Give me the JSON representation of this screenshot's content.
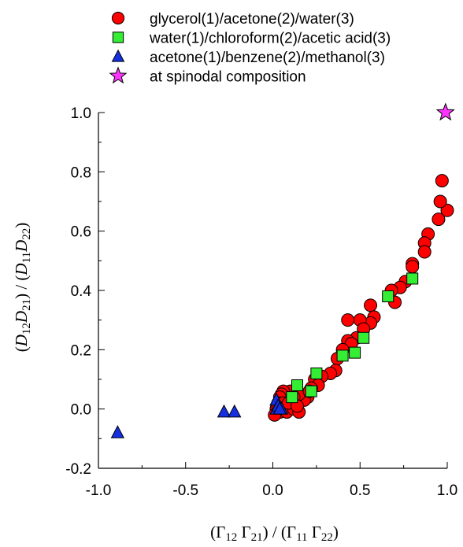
{
  "chart_data": {
    "type": "scatter",
    "title": "",
    "xlabel": {
      "parts": [
        {
          "t": "(Γ",
          "s": "n"
        },
        {
          "t": "12",
          "s": "sub"
        },
        {
          "t": " Γ",
          "s": "n"
        },
        {
          "t": "21",
          "s": "sub"
        },
        {
          "t": ") / (Γ",
          "s": "n"
        },
        {
          "t": "11",
          "s": "sub"
        },
        {
          "t": " Γ",
          "s": "n"
        },
        {
          "t": "22",
          "s": "sub"
        },
        {
          "t": ")",
          "s": "n"
        }
      ]
    },
    "ylabel": {
      "parts": [
        {
          "t": "(",
          "s": "n"
        },
        {
          "t": "D",
          "s": "i"
        },
        {
          "t": "12",
          "s": "sub"
        },
        {
          "t": "D",
          "s": "i"
        },
        {
          "t": "21",
          "s": "sub"
        },
        {
          "t": ") / (",
          "s": "n"
        },
        {
          "t": "D",
          "s": "i"
        },
        {
          "t": "11",
          "s": "sub"
        },
        {
          "t": "D",
          "s": "i"
        },
        {
          "t": "22",
          "s": "sub"
        },
        {
          "t": ")",
          "s": "n"
        }
      ]
    },
    "xlim": [
      -1.0,
      1.0
    ],
    "ylim": [
      -0.2,
      1.0
    ],
    "xticks": [
      "-1.0",
      "-0.5",
      "0.0",
      "0.5",
      "1.0"
    ],
    "yticks": [
      "-0.2",
      "0.0",
      "0.2",
      "0.4",
      "0.6",
      "0.8",
      "1.0"
    ],
    "grid": false,
    "legend_position": "top",
    "series": [
      {
        "name": "glycerol(1)/acetone(2)/water(3)",
        "marker": "circle",
        "color": "#ff0000",
        "points": [
          [
            0.97,
            0.77
          ],
          [
            1.0,
            0.67
          ],
          [
            0.96,
            0.7
          ],
          [
            0.95,
            0.64
          ],
          [
            0.89,
            0.59
          ],
          [
            0.87,
            0.56
          ],
          [
            0.87,
            0.53
          ],
          [
            0.8,
            0.49
          ],
          [
            0.8,
            0.48
          ],
          [
            0.76,
            0.43
          ],
          [
            0.73,
            0.41
          ],
          [
            0.68,
            0.4
          ],
          [
            0.7,
            0.36
          ],
          [
            0.56,
            0.35
          ],
          [
            0.58,
            0.31
          ],
          [
            0.56,
            0.29
          ],
          [
            0.5,
            0.3
          ],
          [
            0.52,
            0.27
          ],
          [
            0.48,
            0.24
          ],
          [
            0.43,
            0.3
          ],
          [
            0.43,
            0.23
          ],
          [
            0.45,
            0.22
          ],
          [
            0.4,
            0.2
          ],
          [
            0.37,
            0.17
          ],
          [
            0.36,
            0.13
          ],
          [
            0.33,
            0.12
          ],
          [
            0.28,
            0.11
          ],
          [
            0.24,
            0.1
          ],
          [
            0.26,
            0.08
          ],
          [
            0.22,
            0.07
          ],
          [
            0.2,
            0.04
          ],
          [
            0.18,
            0.03
          ],
          [
            0.15,
            0.05
          ],
          [
            0.12,
            0.04
          ],
          [
            0.1,
            0.06
          ],
          [
            0.08,
            0.02
          ],
          [
            0.06,
            0.06
          ],
          [
            0.05,
            0.05
          ],
          [
            0.04,
            0.04
          ],
          [
            0.03,
            0.02
          ],
          [
            0.02,
            0.0
          ],
          [
            0.04,
            -0.01
          ],
          [
            0.06,
            0.0
          ],
          [
            0.08,
            -0.01
          ],
          [
            0.12,
            0.0
          ],
          [
            0.15,
            -0.01
          ],
          [
            0.01,
            -0.02
          ],
          [
            0.03,
            0.01
          ],
          [
            0.06,
            0.02
          ],
          [
            0.09,
            0.02
          ],
          [
            0.21,
            0.06
          ],
          [
            0.14,
            0.01
          ]
        ]
      },
      {
        "name": "water(1)/chloroform(2)/acetic acid(3)",
        "marker": "square",
        "color": "#33ee33",
        "points": [
          [
            0.8,
            0.44
          ],
          [
            0.66,
            0.38
          ],
          [
            0.52,
            0.24
          ],
          [
            0.47,
            0.19
          ],
          [
            0.4,
            0.18
          ],
          [
            0.25,
            0.12
          ],
          [
            0.22,
            0.06
          ],
          [
            0.14,
            0.08
          ],
          [
            0.11,
            0.04
          ]
        ]
      },
      {
        "name": "acetone(1)/benzene(2)/methanol(3)",
        "marker": "triangle",
        "color": "#1530e0",
        "points": [
          [
            -0.89,
            -0.08
          ],
          [
            -0.28,
            -0.01
          ],
          [
            -0.22,
            -0.01
          ],
          [
            0.02,
            0.03
          ],
          [
            0.02,
            0.0
          ],
          [
            0.03,
            0.01
          ],
          [
            0.05,
            0.0
          ],
          [
            0.04,
            0.0
          ]
        ]
      },
      {
        "name": "at spinodal composition",
        "marker": "star",
        "color": "#ff33ff",
        "points": [
          [
            0.99,
            1.0
          ]
        ]
      }
    ]
  }
}
